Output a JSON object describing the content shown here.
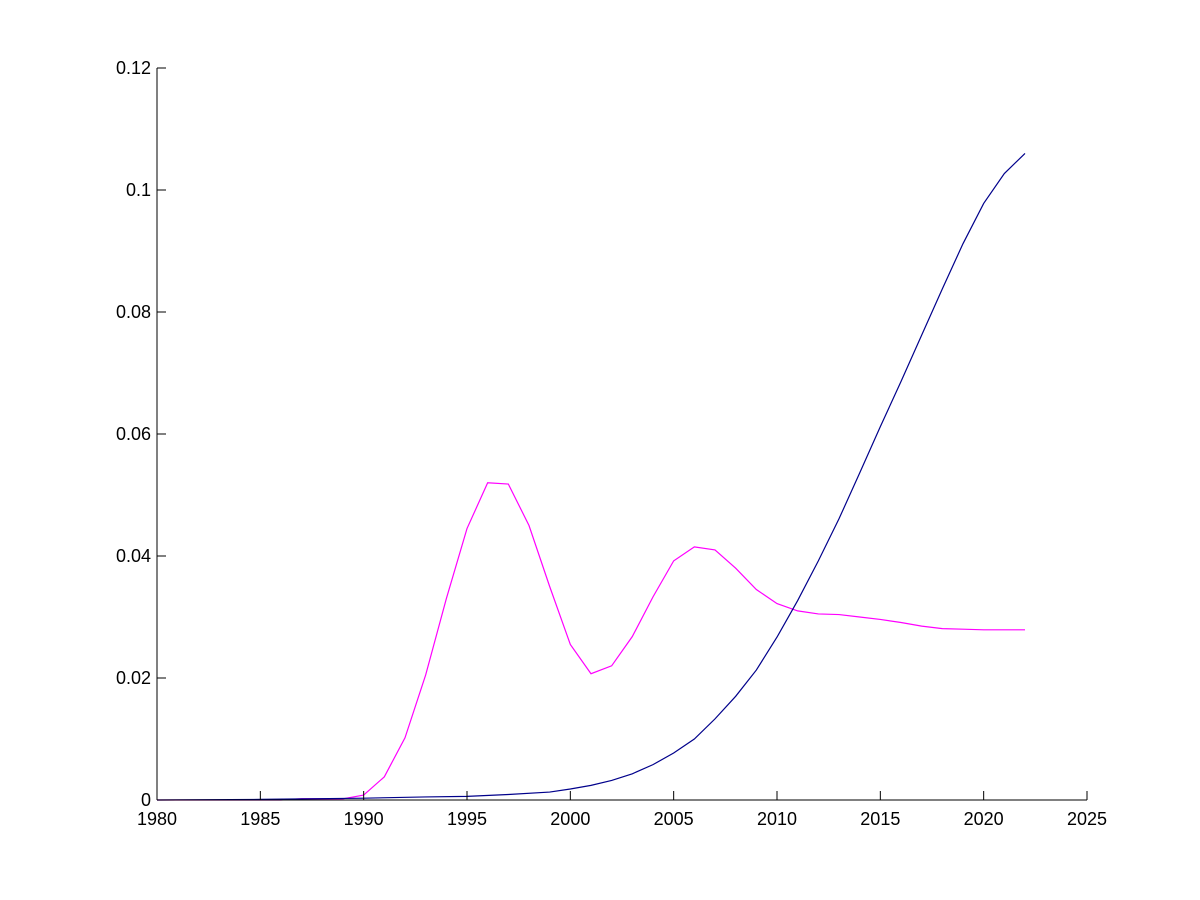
{
  "chart_data": {
    "type": "line",
    "title": "",
    "xlabel": "",
    "ylabel": "",
    "xlim": [
      1980,
      2025
    ],
    "ylim": [
      0,
      0.12
    ],
    "x_ticks": [
      1980,
      1985,
      1990,
      1995,
      2000,
      2005,
      2010,
      2015,
      2020,
      2025
    ],
    "x_tick_labels": [
      "1980",
      "1985",
      "1990",
      "1995",
      "2000",
      "2005",
      "2010",
      "2015",
      "2020",
      "2025"
    ],
    "y_ticks": [
      0,
      0.02,
      0.04,
      0.06,
      0.08,
      0.1,
      0.12
    ],
    "y_tick_labels": [
      "0",
      "0.02",
      "0.04",
      "0.06",
      "0.08",
      "0.1",
      "0.12"
    ],
    "grid": false,
    "legend": false,
    "series": [
      {
        "color": "#ff00ff",
        "x": [
          1980,
          1985,
          1986,
          1987,
          1988,
          1989,
          1990,
          1991,
          1992,
          1993,
          1994,
          1995,
          1996,
          1997,
          1998,
          1999,
          2000,
          2001,
          2002,
          2003,
          2004,
          2005,
          2006,
          2007,
          2008,
          2009,
          2010,
          2011,
          2012,
          2013,
          2014,
          2015,
          2016,
          2017,
          2018,
          2019,
          2020,
          2021,
          2022
        ],
        "y": [
          0,
          0,
          0,
          0.0002,
          0.0002,
          0.0002,
          0.0008,
          0.0038,
          0.0102,
          0.0205,
          0.033,
          0.0445,
          0.052,
          0.0518,
          0.045,
          0.035,
          0.0255,
          0.0207,
          0.022,
          0.0268,
          0.0333,
          0.0392,
          0.0415,
          0.041,
          0.038,
          0.0345,
          0.0322,
          0.031,
          0.0305,
          0.0304,
          0.03,
          0.0296,
          0.0291,
          0.0285,
          0.0281,
          0.028,
          0.0279,
          0.0279,
          0.0279
        ]
      },
      {
        "color": "#00008b",
        "x": [
          1980,
          1985,
          1990,
          1993,
          1995,
          1997,
          1999,
          2000,
          2001,
          2002,
          2003,
          2004,
          2005,
          2006,
          2007,
          2008,
          2009,
          2010,
          2011,
          2012,
          2013,
          2014,
          2015,
          2016,
          2017,
          2018,
          2019,
          2020,
          2021,
          2022
        ],
        "y": [
          0,
          0.0001,
          0.0003,
          0.0005,
          0.0006,
          0.0009,
          0.0013,
          0.0018,
          0.0024,
          0.0032,
          0.0043,
          0.0058,
          0.0077,
          0.01,
          0.0133,
          0.017,
          0.0213,
          0.0267,
          0.0327,
          0.0392,
          0.0461,
          0.0536,
          0.0612,
          0.0686,
          0.0762,
          0.0838,
          0.0912,
          0.0978,
          0.1027,
          0.106
        ]
      }
    ]
  }
}
